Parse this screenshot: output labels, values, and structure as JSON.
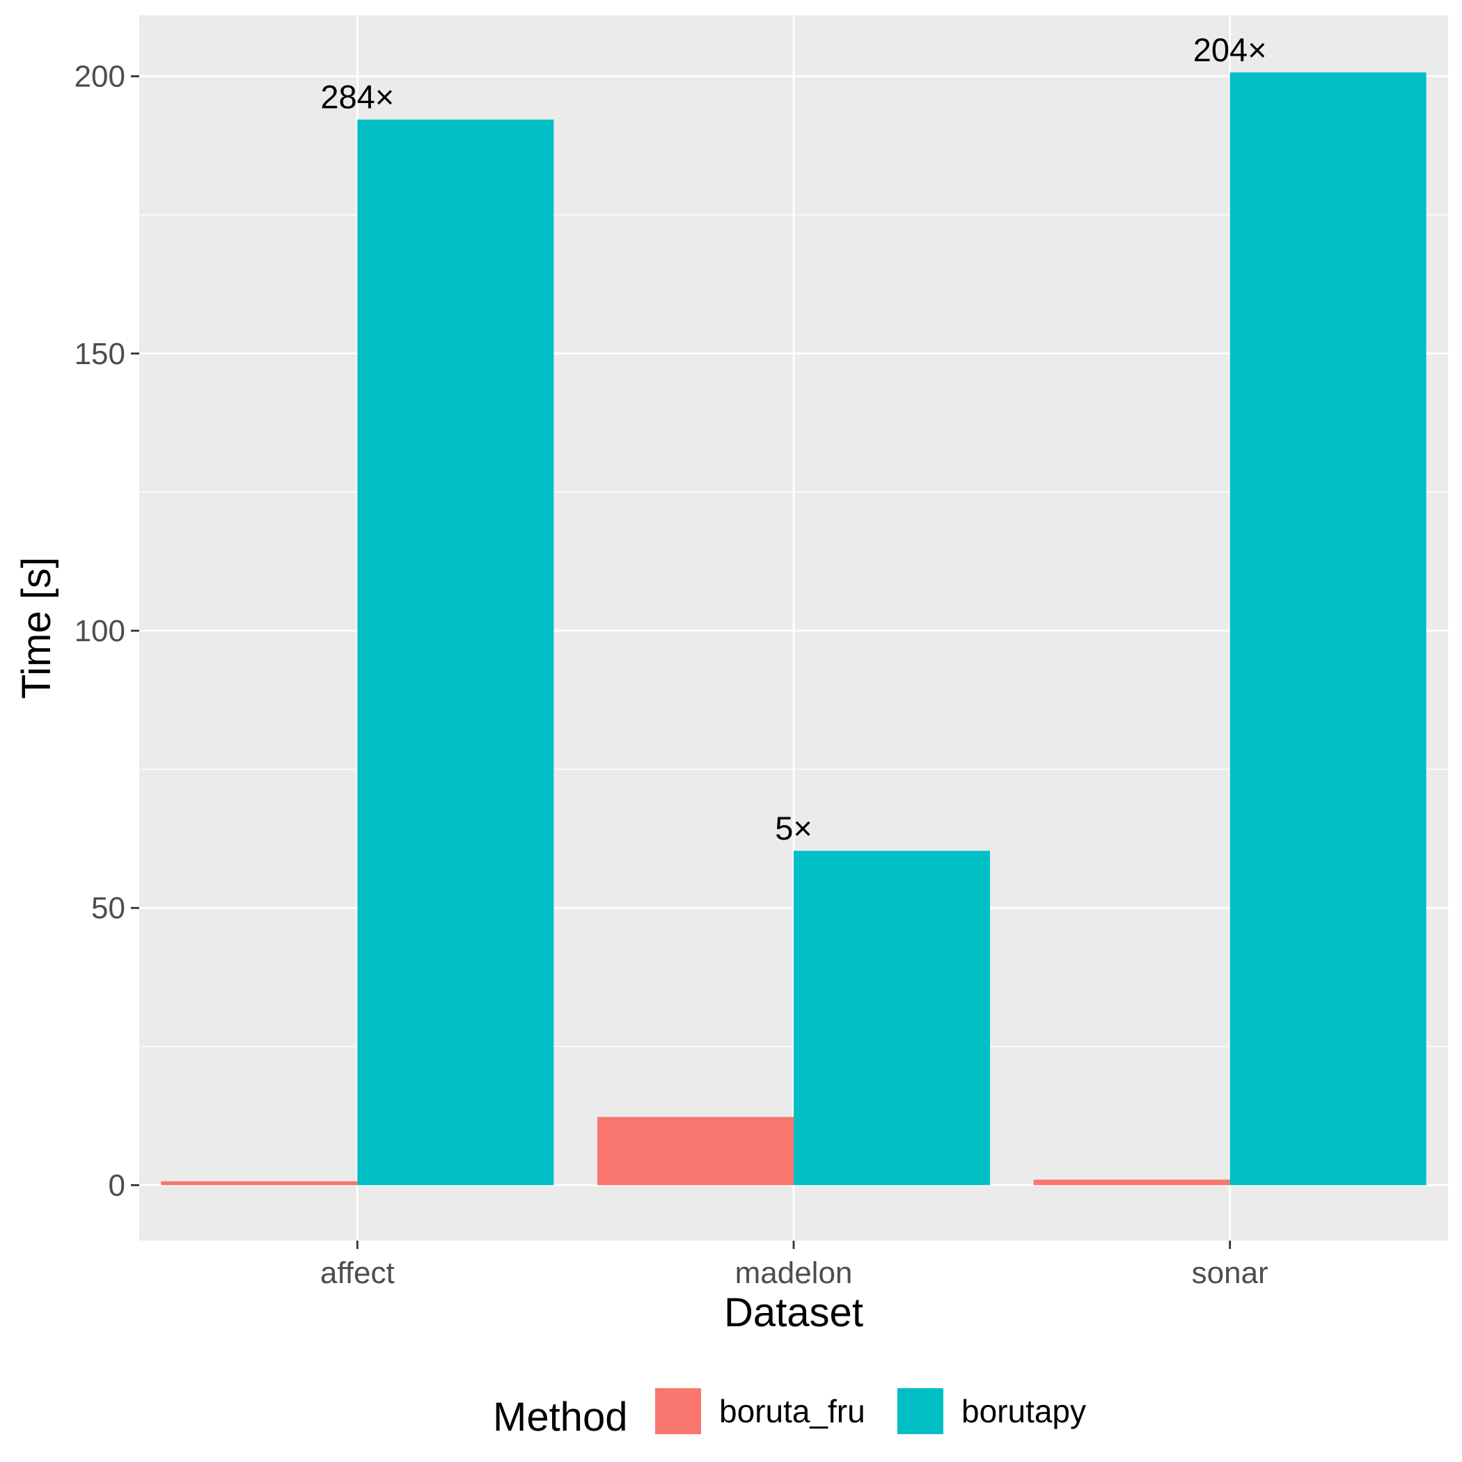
{
  "chart_data": {
    "type": "bar",
    "title": "",
    "xlabel": "Dataset",
    "ylabel": "Time [s]",
    "categories": [
      "affect",
      "madelon",
      "sonar"
    ],
    "series": [
      {
        "name": "boruta_fru",
        "values": [
          0.7,
          12.3,
          1.0
        ]
      },
      {
        "name": "borutapy",
        "values": [
          192.2,
          60.3,
          200.7
        ]
      }
    ],
    "bar_labels": [
      "284×",
      "5×",
      "204×"
    ],
    "yticks": [
      0,
      50,
      100,
      150,
      200
    ],
    "ylim": [
      -10,
      211
    ],
    "grid": true,
    "legend": {
      "title": "Method",
      "placement": "bottom"
    }
  },
  "colors": {
    "panel": "#ebebeb",
    "grid": "#ffffff",
    "boruta_fru": "#f8766d",
    "borutapy": "#00bfc4",
    "tick": "#4d4d4d",
    "tick_mark": "#333333"
  }
}
